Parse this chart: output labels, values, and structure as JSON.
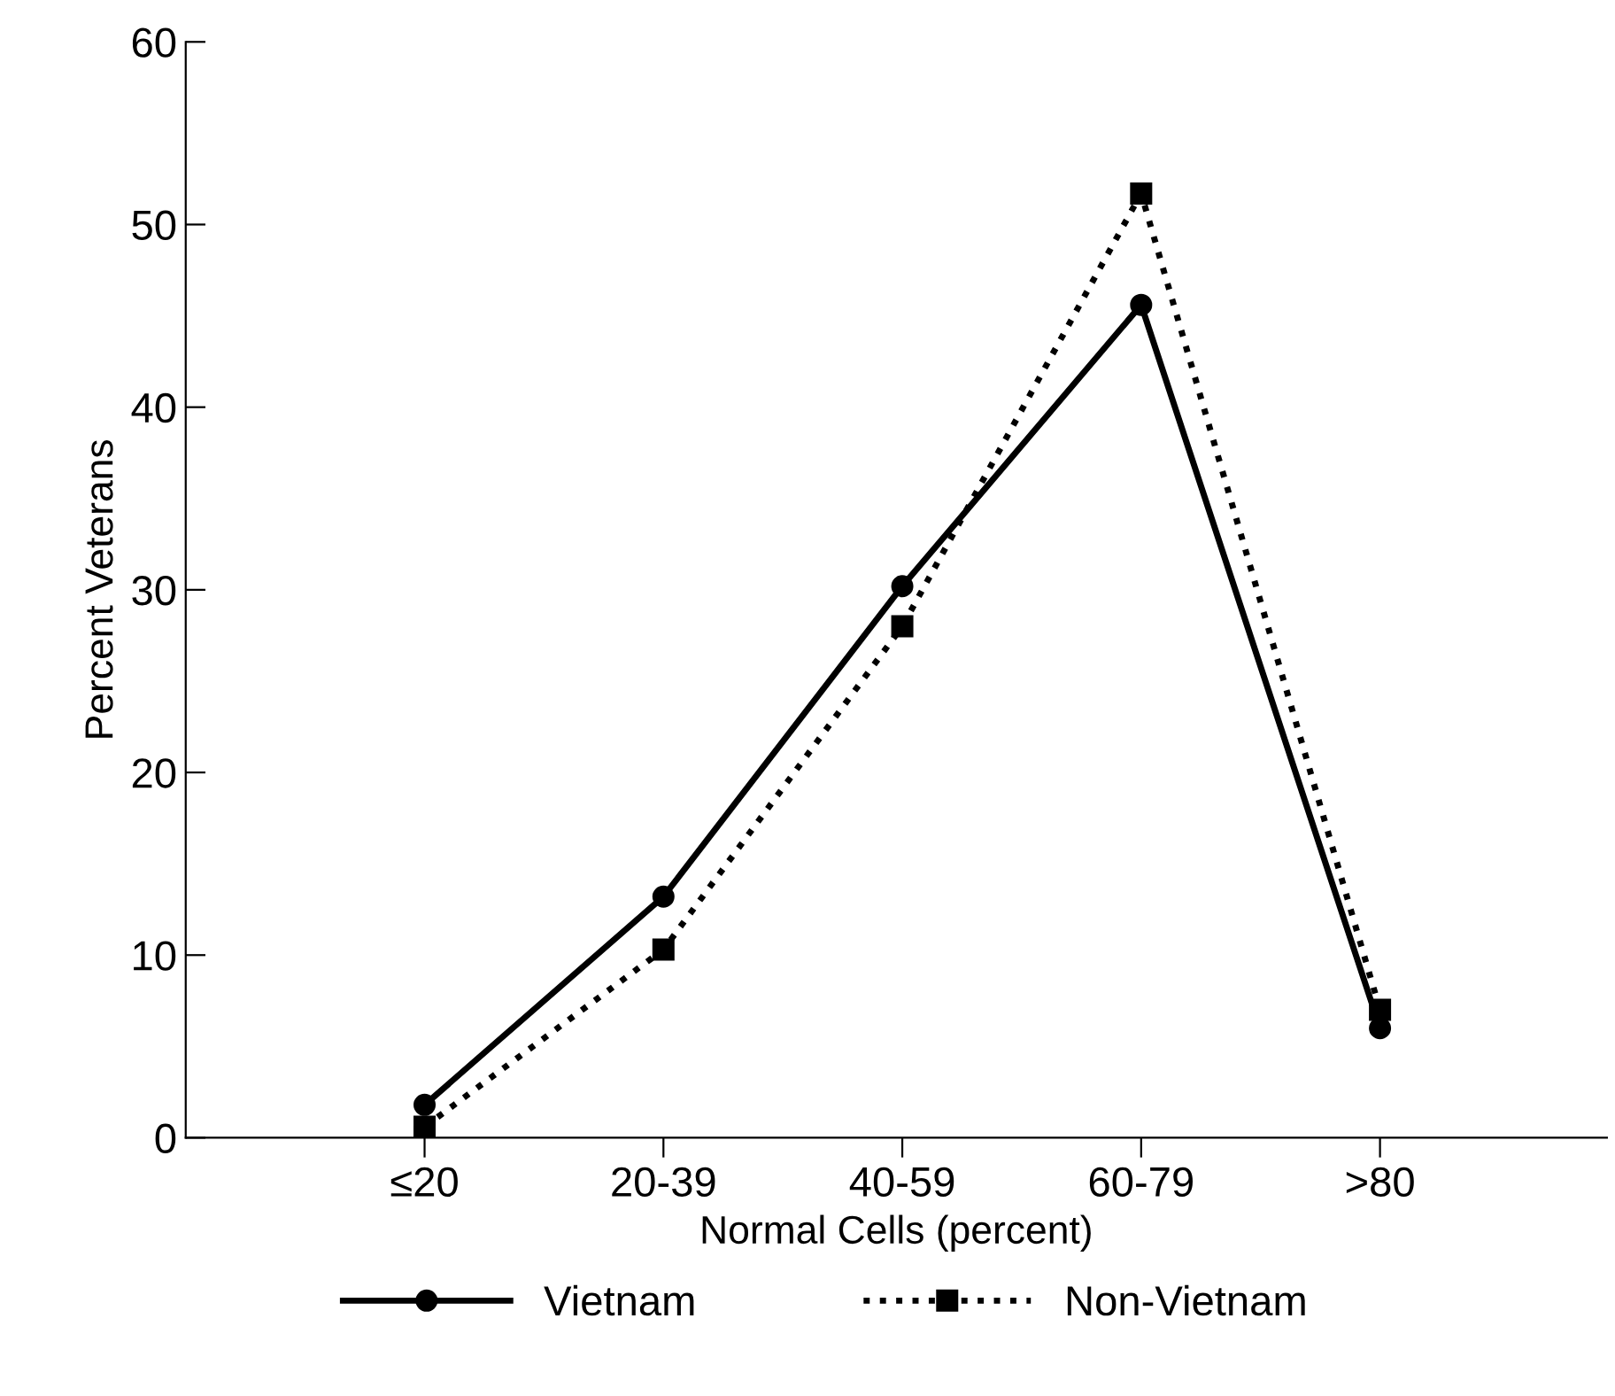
{
  "chart_data": {
    "type": "line",
    "xlabel": "Normal Cells (percent)",
    "ylabel": "Percent Veterans",
    "categories": [
      "≤20",
      "20-39",
      "40-59",
      "60-79",
      ">80"
    ],
    "series": [
      {
        "name": "Vietnam",
        "color": "#000000",
        "marker": "circle",
        "line_style": "solid",
        "values": [
          1.8,
          13.2,
          30.2,
          45.6,
          6.0
        ]
      },
      {
        "name": "Non-Vietnam",
        "color": "#000000",
        "marker": "square",
        "line_style": "dotted",
        "values": [
          0.6,
          10.3,
          28.0,
          51.7,
          7.0
        ]
      }
    ],
    "ylim": [
      0,
      60
    ],
    "yticks": [
      0,
      10,
      20,
      30,
      40,
      50,
      60
    ],
    "grid": false,
    "legend": "bottom"
  }
}
